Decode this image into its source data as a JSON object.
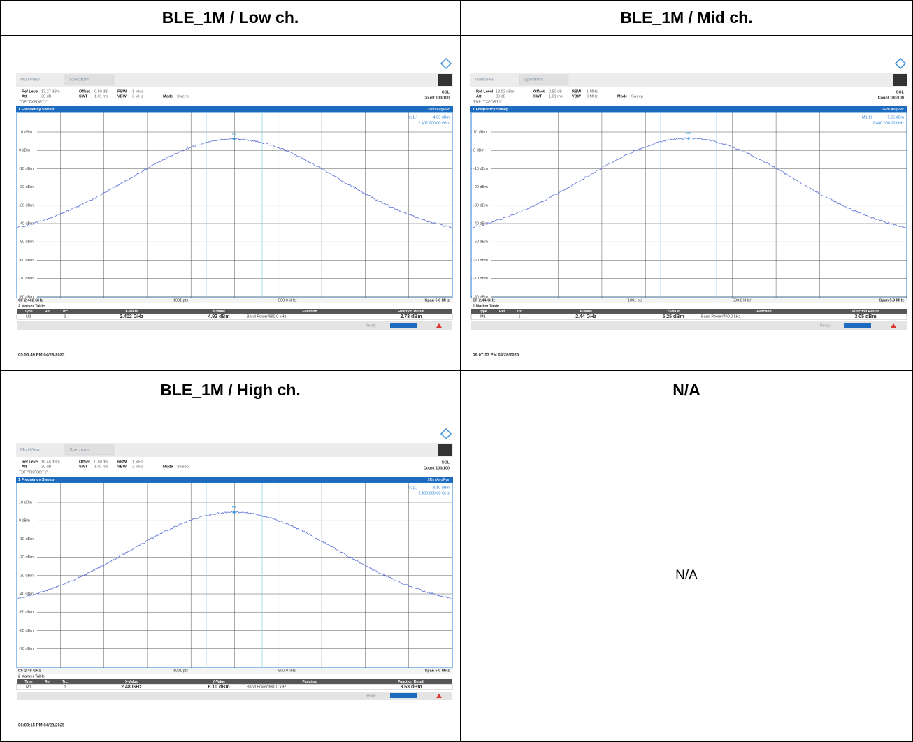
{
  "panels": [
    {
      "title": "BLE_1M / Low ch.",
      "shot": {
        "tabs": [
          "MultiView",
          "Spectrum"
        ],
        "settings": [
          [
            [
              "Ref Level",
              "17.27 dBm"
            ],
            [
              "Offset",
              "0.50 dB"
            ],
            [
              "RBW",
              "1 MHz"
            ]
          ],
          [
            [
              "Att",
              "30 dB"
            ],
            [
              "SWT",
              "1.01 ms"
            ],
            [
              "VBW",
              "3 MHz"
            ],
            [
              "Mode",
              "Sweep"
            ]
          ]
        ],
        "tdf": "TDF \"TXPORT1\"",
        "sgl": "SGL",
        "count": "Count 100/100",
        "trace_title": "1 Frequency Sweep",
        "trace_mode": "1Rm AvgPwr",
        "marker": {
          "label": "M1[1]",
          "value": "4.93 dBm",
          "freq": "2.402 000 00 GHz",
          "tag": "M1"
        },
        "y_labels": [
          "10 dBm",
          "0 dBm",
          "-10 dBm",
          "-20 dBm",
          "-30 dBm",
          "-40 dBm",
          "-50 dBm",
          "-60 dBm",
          "-70 dBm",
          "-80 dBm"
        ],
        "cf": "CF 2.402 GHz",
        "points": "1001 pts",
        "per_div": "500.0 kHz/",
        "span": "Span 5.0 MHz",
        "marker_table": {
          "title": "2 Marker Table",
          "header": [
            "Type",
            "Ref",
            "Trc",
            "X-Value",
            "Y-Value",
            "Function",
            "Function Result"
          ],
          "row": [
            "M1",
            "",
            "1",
            "2.402 GHz",
            "4.93 dBm",
            "Band Power/690.0 kHz",
            "2.73 dBm"
          ]
        },
        "status": "Ready",
        "timestamp": "05:55:49 PM 04/28/2025"
      }
    },
    {
      "title": "BLE_1M / Mid ch.",
      "shot": {
        "tabs": [
          "MultiView",
          "Spectrum"
        ],
        "settings": [
          [
            [
              "Ref Level",
              "18.02 dBm"
            ],
            [
              "Offset",
              "0.50 dB"
            ],
            [
              "RBW",
              "1 MHz"
            ]
          ],
          [
            [
              "Att",
              "30 dB"
            ],
            [
              "SWT",
              "1.01 ms"
            ],
            [
              "VBW",
              "3 MHz"
            ],
            [
              "Mode",
              "Sweep"
            ]
          ]
        ],
        "tdf": "TDF \"TXPORT1\"",
        "sgl": "SGL",
        "count": "Count 100/100",
        "trace_title": "1 Frequency Sweep",
        "trace_mode": "1Rm AvgPwr",
        "marker": {
          "label": "M1[1]",
          "value": "5.25 dBm",
          "freq": "2.440 000 00 GHz",
          "tag": "M1"
        },
        "y_labels": [
          "10 dBm",
          "0 dBm",
          "-10 dBm",
          "-20 dBm",
          "-30 dBm",
          "-40 dBm",
          "-50 dBm",
          "-60 dBm",
          "-70 dBm",
          "-80 dBm"
        ],
        "cf": "CF 2.44 GHz",
        "points": "1001 pts",
        "per_div": "500.0 kHz/",
        "span": "Span 5.0 MHz",
        "marker_table": {
          "title": "2 Marker Table",
          "header": [
            "Type",
            "Ref",
            "Trc",
            "X-Value",
            "Y-Value",
            "Function",
            "Function Result"
          ],
          "row": [
            "M1",
            "",
            "1",
            "2.44 GHz",
            "5.25 dBm",
            "Band Power/700.0 kHz",
            "3.05 dBm"
          ]
        },
        "status": "Ready",
        "timestamp": "06:07:57 PM 04/28/2025"
      }
    },
    {
      "title": "BLE_1M / High ch.",
      "shot": {
        "tabs": [
          "MultiView",
          "Spectrum"
        ],
        "settings": [
          [
            [
              "Ref Level",
              "18.45 dBm"
            ],
            [
              "Offset",
              "0.50 dB"
            ],
            [
              "RBW",
              "1 MHz"
            ]
          ],
          [
            [
              "Att",
              "30 dB"
            ],
            [
              "SWT",
              "1.01 ms"
            ],
            [
              "VBW",
              "3 MHz"
            ],
            [
              "Mode",
              "Sweep"
            ]
          ]
        ],
        "tdf": "TDF \"TXPORT1\"",
        "sgl": "SGL",
        "count": "Count 100/100",
        "trace_title": "1 Frequency Sweep",
        "trace_mode": "1Rm AvgPwr",
        "marker": {
          "label": "M1[1]",
          "value": "6.10 dBm",
          "freq": "2.480 000 00 GHz",
          "tag": "M1"
        },
        "y_labels": [
          "10 dBm",
          "0 dBm",
          "-10 dBm",
          "-20 dBm",
          "-30 dBm",
          "-40 dBm",
          "-50 dBm",
          "-60 dBm",
          "-70 dBm"
        ],
        "cf": "CF 2.48 GHz",
        "points": "1001 pts",
        "per_div": "500.0 kHz/",
        "span": "Span 5.0 MHz",
        "marker_table": {
          "title": "2 Marker Table",
          "header": [
            "Type",
            "Ref",
            "Trc",
            "X-Value",
            "Y-Value",
            "Function",
            "Function Result"
          ],
          "row": [
            "M1",
            "",
            "1",
            "2.48 GHz",
            "6.10 dBm",
            "Band Power/690.0 kHz",
            "3.63 dBm"
          ]
        },
        "status": "Ready",
        "timestamp": "06:09:15 PM 04/28/2025"
      }
    },
    {
      "title": "N/A",
      "text": "N/A"
    }
  ]
}
